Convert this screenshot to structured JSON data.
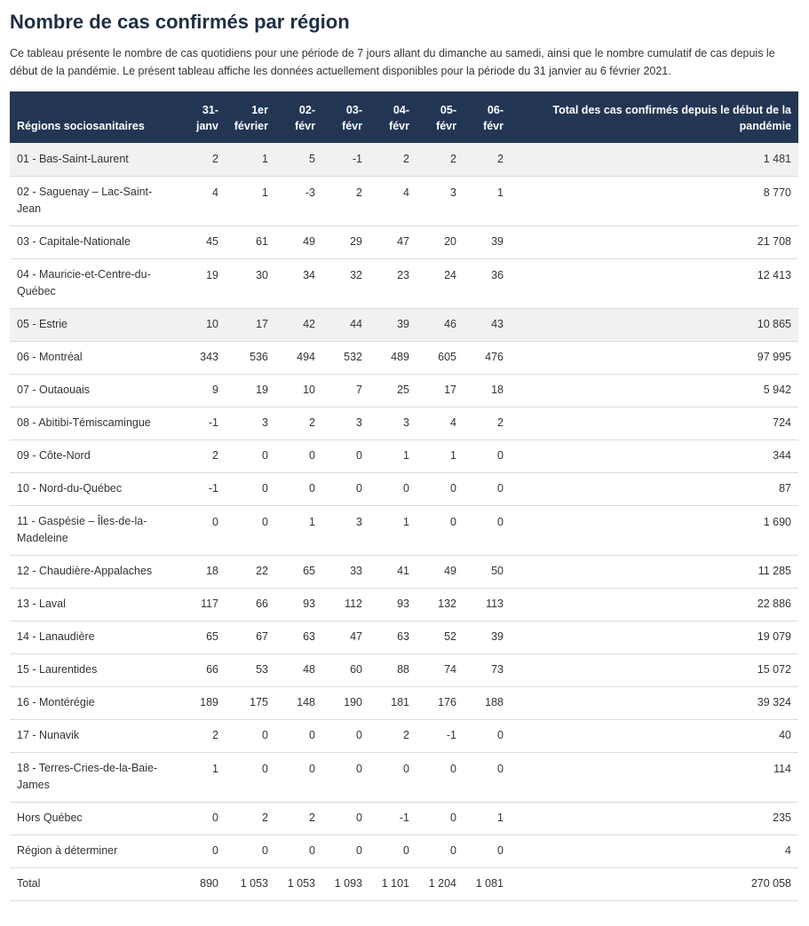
{
  "title": "Nombre de cas confirmés par région",
  "description": "Ce tableau présente le nombre de cas quotidiens pour une période de 7 jours allant du dimanche au samedi, ainsi que le nombre cumulatif de cas depuis le début de la pandémie. Le présent tableau affiche les données actuellement disponibles pour la période du 31 janvier au 6 février 2021.",
  "table": {
    "headers": {
      "region": "Régions sociosanitaires",
      "days": [
        {
          "top": "31-",
          "bottom": "janv"
        },
        {
          "top": "1er",
          "bottom": "février"
        },
        {
          "top": "02-",
          "bottom": "févr"
        },
        {
          "top": "03-",
          "bottom": "févr"
        },
        {
          "top": "04-",
          "bottom": "févr"
        },
        {
          "top": "05-",
          "bottom": "févr"
        },
        {
          "top": "06-",
          "bottom": "févr"
        }
      ],
      "total": "Total des cas confirmés depuis le début de la pandémie"
    },
    "rows": [
      {
        "region": "01 - Bas-Saint-Laurent",
        "days": [
          "2",
          "1",
          "5",
          "-1",
          "2",
          "2",
          "2"
        ],
        "total": "1 481"
      },
      {
        "region": "02 - Saguenay – Lac-Saint-Jean",
        "days": [
          "4",
          "1",
          "-3",
          "2",
          "4",
          "3",
          "1"
        ],
        "total": "8 770"
      },
      {
        "region": "03 - Capitale-Nationale",
        "days": [
          "45",
          "61",
          "49",
          "29",
          "47",
          "20",
          "39"
        ],
        "total": "21 708"
      },
      {
        "region": "04 - Mauricie-et-Centre-du-Québec",
        "days": [
          "19",
          "30",
          "34",
          "32",
          "23",
          "24",
          "36"
        ],
        "total": "12 413"
      },
      {
        "region": "05 - Estrie",
        "days": [
          "10",
          "17",
          "42",
          "44",
          "39",
          "46",
          "43"
        ],
        "total": "10 865"
      },
      {
        "region": "06 - Montréal",
        "days": [
          "343",
          "536",
          "494",
          "532",
          "489",
          "605",
          "476"
        ],
        "total": "97 995"
      },
      {
        "region": "07 - Outaouais",
        "days": [
          "9",
          "19",
          "10",
          "7",
          "25",
          "17",
          "18"
        ],
        "total": "5 942"
      },
      {
        "region": "08 - Abitibi-Témiscamingue",
        "days": [
          "-1",
          "3",
          "2",
          "3",
          "3",
          "4",
          "2"
        ],
        "total": "724"
      },
      {
        "region": "09 - Côte-Nord",
        "days": [
          "2",
          "0",
          "0",
          "0",
          "1",
          "1",
          "0"
        ],
        "total": "344"
      },
      {
        "region": "10 - Nord-du-Québec",
        "days": [
          "-1",
          "0",
          "0",
          "0",
          "0",
          "0",
          "0"
        ],
        "total": "87"
      },
      {
        "region": "11 - Gaspésie – Îles-de-la-Madeleine",
        "days": [
          "0",
          "0",
          "1",
          "3",
          "1",
          "0",
          "0"
        ],
        "total": "1 690"
      },
      {
        "region": "12 - Chaudière-Appalaches",
        "days": [
          "18",
          "22",
          "65",
          "33",
          "41",
          "49",
          "50"
        ],
        "total": "11 285"
      },
      {
        "region": "13 - Laval",
        "days": [
          "117",
          "66",
          "93",
          "112",
          "93",
          "132",
          "113"
        ],
        "total": "22 886"
      },
      {
        "region": "14 - Lanaudière",
        "days": [
          "65",
          "67",
          "63",
          "47",
          "63",
          "52",
          "39"
        ],
        "total": "19 079"
      },
      {
        "region": "15 - Laurentides",
        "days": [
          "66",
          "53",
          "48",
          "60",
          "88",
          "74",
          "73"
        ],
        "total": "15 072"
      },
      {
        "region": "16 - Montérégie",
        "days": [
          "189",
          "175",
          "148",
          "190",
          "181",
          "176",
          "188"
        ],
        "total": "39 324"
      },
      {
        "region": "17 - Nunavik",
        "days": [
          "2",
          "0",
          "0",
          "0",
          "2",
          "-1",
          "0"
        ],
        "total": "40"
      },
      {
        "region": "18 - Terres-Cries-de-la-Baie-James",
        "days": [
          "1",
          "0",
          "0",
          "0",
          "0",
          "0",
          "0"
        ],
        "total": "114"
      },
      {
        "region": "Hors Québec",
        "days": [
          "0",
          "2",
          "2",
          "0",
          "-1",
          "0",
          "1"
        ],
        "total": "235"
      },
      {
        "region": "Région à déterminer",
        "days": [
          "0",
          "0",
          "0",
          "0",
          "0",
          "0",
          "0"
        ],
        "total": "4"
      },
      {
        "region": "Total",
        "days": [
          "890",
          "1 053",
          "1 053",
          "1 093",
          "1 101",
          "1 204",
          "1 081"
        ],
        "total": "270 058"
      }
    ]
  }
}
